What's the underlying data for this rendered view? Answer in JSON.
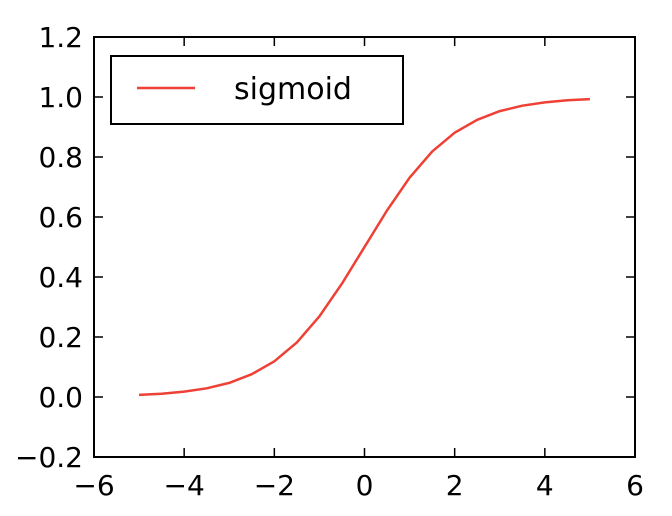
{
  "chart_data": {
    "type": "line",
    "title": "",
    "xlabel": "",
    "ylabel": "",
    "xlim": [
      -6,
      6
    ],
    "ylim": [
      -0.2,
      1.2
    ],
    "xticks": [
      -6,
      -4,
      -2,
      0,
      2,
      4,
      6
    ],
    "xtick_labels": [
      "−6",
      "−4",
      "−2",
      "0",
      "2",
      "4",
      "6"
    ],
    "yticks": [
      -0.2,
      0.0,
      0.2,
      0.4,
      0.6,
      0.8,
      1.0,
      1.2
    ],
    "ytick_labels": [
      "−0.2",
      "0.0",
      "0.2",
      "0.4",
      "0.6",
      "0.8",
      "1.0",
      "1.2"
    ],
    "grid": false,
    "legend": {
      "position": "top-left",
      "entries": [
        "sigmoid"
      ]
    },
    "series": [
      {
        "name": "sigmoid",
        "color": "#ee4035",
        "x": [
          -5,
          -4.5,
          -4,
          -3.5,
          -3,
          -2.5,
          -2,
          -1.5,
          -1,
          -0.5,
          0,
          0.5,
          1,
          1.5,
          2,
          2.5,
          3,
          3.5,
          4,
          4.5,
          5
        ],
        "y": [
          0.007,
          0.011,
          0.018,
          0.029,
          0.047,
          0.076,
          0.119,
          0.182,
          0.269,
          0.378,
          0.5,
          0.622,
          0.731,
          0.818,
          0.881,
          0.924,
          0.953,
          0.971,
          0.982,
          0.989,
          0.993
        ]
      }
    ]
  }
}
